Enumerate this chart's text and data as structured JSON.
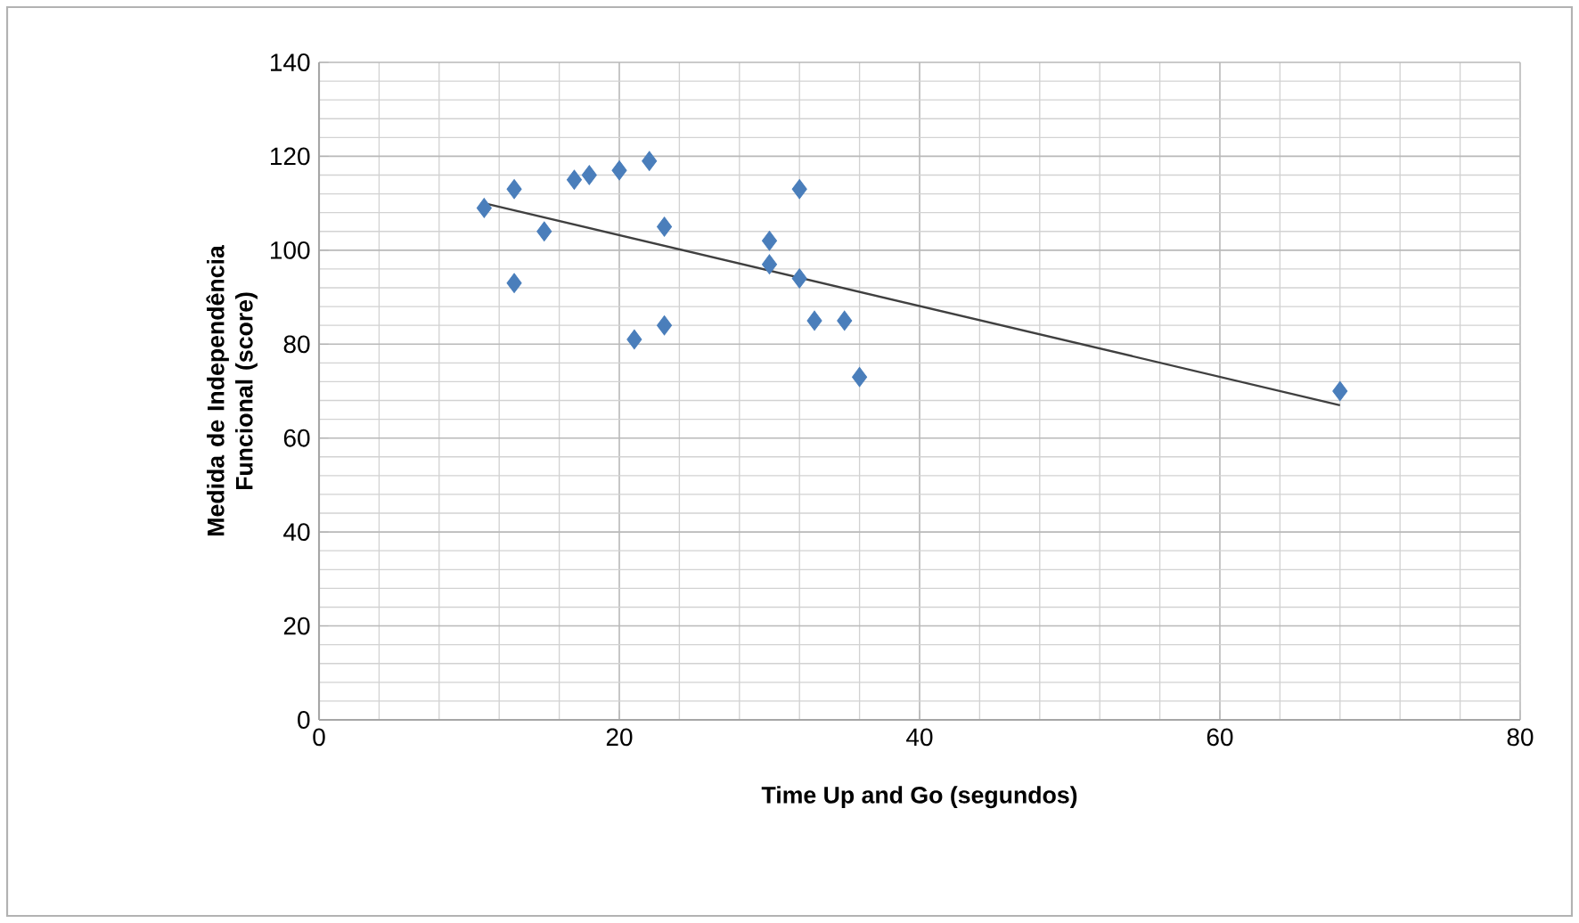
{
  "chart_data": {
    "type": "scatter",
    "xlabel": "Time Up and Go (segundos)",
    "ylabel": "Medida de Independência Funcional (score)",
    "xlim": [
      0,
      80
    ],
    "ylim": [
      0,
      140
    ],
    "xticks": [
      0,
      20,
      40,
      60,
      80
    ],
    "yticks": [
      0,
      20,
      40,
      60,
      80,
      100,
      120,
      140
    ],
    "grid": true,
    "marker": "diamond",
    "series": [
      {
        "color": "#4a7ebb",
        "x": [
          11,
          13,
          13,
          15,
          17,
          18,
          20,
          22,
          23,
          21,
          23,
          30,
          30,
          32,
          32,
          33,
          35,
          36,
          68
        ],
        "values": [
          109,
          113,
          93,
          104,
          115,
          116,
          117,
          119,
          105,
          81,
          84,
          102,
          97,
          113,
          94,
          85,
          85,
          73,
          70
        ]
      },
      {
        "type": "line",
        "color": "#404040",
        "marker": "none",
        "x": [
          11,
          68
        ],
        "values": [
          110,
          67
        ]
      }
    ]
  }
}
